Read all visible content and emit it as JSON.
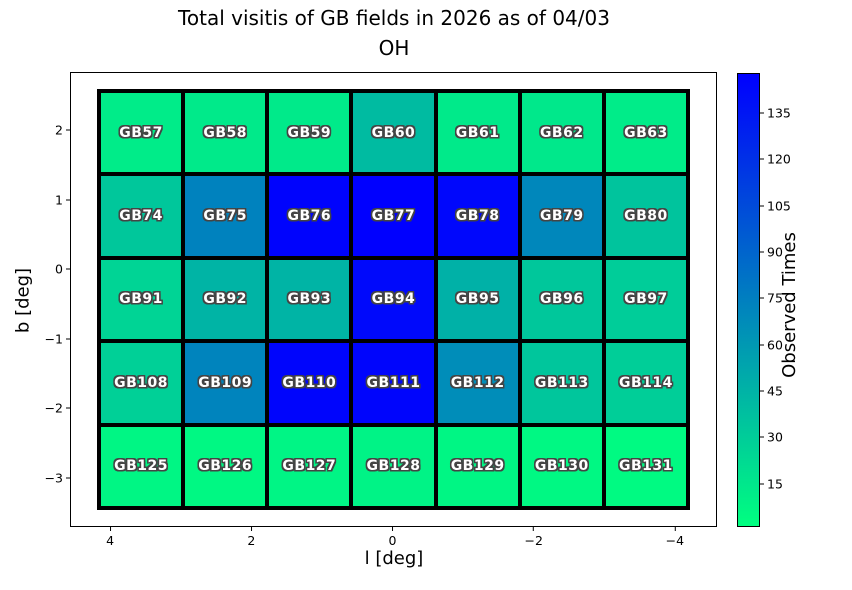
{
  "title": {
    "line1": "Total visitis of GB fields in 2026 as of 04/03",
    "line2": "OH"
  },
  "axes": {
    "xlabel": "l [deg]",
    "ylabel": "b [deg]",
    "x_ticks": [
      {
        "label": "4",
        "value": 4
      },
      {
        "label": "2",
        "value": 2
      },
      {
        "label": "0",
        "value": 0
      },
      {
        "label": "−2",
        "value": -2
      },
      {
        "label": "−4",
        "value": -4
      }
    ],
    "y_ticks": [
      {
        "label": "2",
        "value": 2
      },
      {
        "label": "1",
        "value": 1
      },
      {
        "label": "0",
        "value": 0
      },
      {
        "label": "−1",
        "value": -1
      },
      {
        "label": "−2",
        "value": -2
      },
      {
        "label": "−3",
        "value": -3
      }
    ]
  },
  "colorbar": {
    "label": "Observed Times",
    "ticks": [
      15,
      30,
      45,
      60,
      75,
      90,
      105,
      120,
      135
    ],
    "vmin": 1,
    "vmax": 148,
    "colormap": "winter_r",
    "top_color": "#0000ff",
    "bottom_color": "#00ff80"
  },
  "chart_data": {
    "type": "heatmap",
    "title": "Total visitis of GB fields in 2026 as of 04/03 — OH",
    "xlabel": "l [deg]",
    "ylabel": "b [deg]",
    "value_label": "Observed Times",
    "x_range": [
      4.6,
      -4.6
    ],
    "y_range": [
      -3.7,
      2.9
    ],
    "l_centers": [
      3.6,
      2.4,
      1.2,
      0,
      -1.2,
      -2.4,
      -3.6
    ],
    "b_centers": [
      2.0,
      0.8,
      -0.4,
      -1.6,
      -2.8
    ],
    "cell_size_deg": 1.2,
    "rows": [
      {
        "b": 2.0,
        "cells": [
          {
            "label": "GB57",
            "value": 12
          },
          {
            "label": "GB58",
            "value": 13
          },
          {
            "label": "GB59",
            "value": 13
          },
          {
            "label": "GB60",
            "value": 40
          },
          {
            "label": "GB61",
            "value": 13
          },
          {
            "label": "GB62",
            "value": 14
          },
          {
            "label": "GB63",
            "value": 12
          }
        ]
      },
      {
        "b": 0.8,
        "cells": [
          {
            "label": "GB74",
            "value": 33
          },
          {
            "label": "GB75",
            "value": 73
          },
          {
            "label": "GB76",
            "value": 146
          },
          {
            "label": "GB77",
            "value": 148
          },
          {
            "label": "GB78",
            "value": 144
          },
          {
            "label": "GB79",
            "value": 70
          },
          {
            "label": "GB80",
            "value": 35
          }
        ]
      },
      {
        "b": -0.4,
        "cells": [
          {
            "label": "GB91",
            "value": 26
          },
          {
            "label": "GB92",
            "value": 44
          },
          {
            "label": "GB93",
            "value": 44
          },
          {
            "label": "GB94",
            "value": 143
          },
          {
            "label": "GB95",
            "value": 46
          },
          {
            "label": "GB96",
            "value": 33
          },
          {
            "label": "GB97",
            "value": 30
          }
        ]
      },
      {
        "b": -1.6,
        "cells": [
          {
            "label": "GB108",
            "value": 28
          },
          {
            "label": "GB109",
            "value": 72
          },
          {
            "label": "GB110",
            "value": 145
          },
          {
            "label": "GB111",
            "value": 145
          },
          {
            "label": "GB112",
            "value": 67
          },
          {
            "label": "GB113",
            "value": 34
          },
          {
            "label": "GB114",
            "value": 29
          }
        ]
      },
      {
        "b": -2.8,
        "cells": [
          {
            "label": "GB125",
            "value": 6
          },
          {
            "label": "GB126",
            "value": 5
          },
          {
            "label": "GB127",
            "value": 7
          },
          {
            "label": "GB128",
            "value": 8
          },
          {
            "label": "GB129",
            "value": 6
          },
          {
            "label": "GB130",
            "value": 5
          },
          {
            "label": "GB131",
            "value": 4
          }
        ]
      }
    ]
  }
}
